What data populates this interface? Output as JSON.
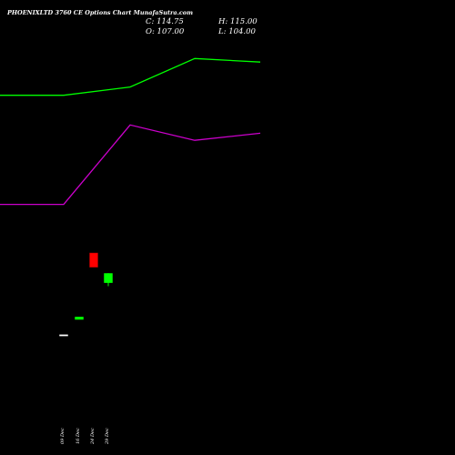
{
  "chart_data": {
    "type": "candlestick",
    "title": "PHOENIXLTD 3760  CE Options  Chart MunafaSutra.com",
    "ohlc_labels": {
      "close": "C: 114.75",
      "high": "H: 115.00",
      "open": "O: 107.00",
      "low": "L: 104.00"
    },
    "categories": [
      "09 Dec",
      "16 Dec",
      "24 Dec",
      "29 Dec"
    ],
    "candles": [
      {
        "date": "09 Dec",
        "open": 63.0,
        "high": 63.0,
        "low": 63.0,
        "close": 63.0,
        "color": "#ffffff"
      },
      {
        "date": "16 Dec",
        "open": 76.0,
        "high": 78.0,
        "low": 76.0,
        "close": 78.0,
        "color": "#00ff00"
      },
      {
        "date": "24 Dec",
        "open": 132.0,
        "high": 132.0,
        "low": 120.0,
        "close": 120.0,
        "color": "#ff0000"
      },
      {
        "date": "29 Dec",
        "open": 107.0,
        "high": 115.0,
        "low": 104.0,
        "close": 114.75,
        "color": "#00ff00"
      }
    ],
    "lines": [
      {
        "color": "#00ff00",
        "points": [
          [
            0,
            265.0
          ],
          [
            70,
            265.0
          ],
          [
            143,
            272.0
          ],
          [
            214,
            296.0
          ],
          [
            286,
            293.0
          ]
        ]
      },
      {
        "color": "#cc00cc",
        "points": [
          [
            0,
            173.0
          ],
          [
            70,
            173.0
          ],
          [
            143,
            240.0
          ],
          [
            214,
            227.0
          ],
          [
            286,
            233.0
          ]
        ]
      }
    ],
    "ylim": [
      0,
      330
    ],
    "background": "#000000"
  }
}
